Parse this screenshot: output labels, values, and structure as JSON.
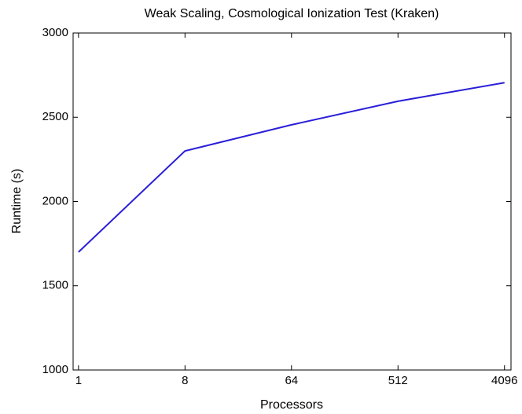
{
  "chart_data": {
    "type": "line",
    "title": "Weak Scaling, Cosmological Ionization Test (Kraken)",
    "xlabel": "Processors",
    "ylabel": "Runtime (s)",
    "x": [
      1,
      8,
      64,
      512,
      4096
    ],
    "series": [
      {
        "name": "Runtime",
        "color": "#2a1fd8",
        "values": [
          1700,
          2300,
          2455,
          2595,
          2705
        ]
      }
    ],
    "xscale": "log",
    "xlim": [
      0.9,
      4650
    ],
    "xticks": [
      1,
      8,
      64,
      512,
      4096
    ],
    "ylim": [
      1000,
      3000
    ],
    "yticks": [
      1000,
      1500,
      2000,
      2500,
      3000
    ],
    "grid": false
  }
}
